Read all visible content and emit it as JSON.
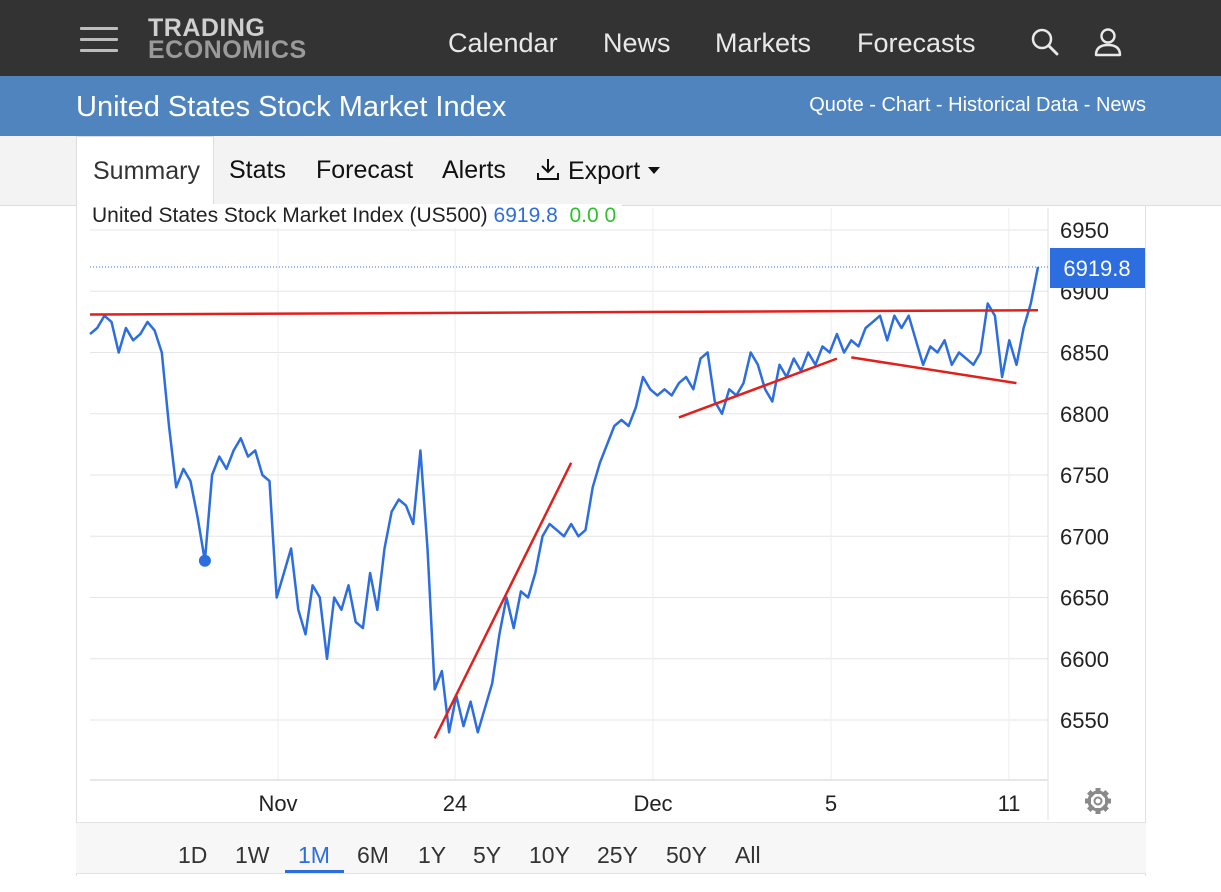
{
  "header": {
    "logo_line1": "TRADING",
    "logo_line2": "ECONOMICS",
    "nav": [
      "Calendar",
      "News",
      "Markets",
      "Forecasts"
    ],
    "icons": [
      "menu-icon",
      "search-icon",
      "user-icon"
    ]
  },
  "title_bar": {
    "title": "United States Stock Market Index",
    "links": [
      "Quote",
      "Chart",
      "Historical Data",
      "News"
    ],
    "separator": " - "
  },
  "tabs": {
    "items": [
      "Summary",
      "Stats",
      "Forecast",
      "Alerts",
      "Export"
    ],
    "active": "Summary",
    "export_icon": "download-icon"
  },
  "chart": {
    "series_label": "United States Stock Market Index (US500)",
    "last_value": "6919.8",
    "change": "0.0",
    "change_pct": "0",
    "price_badge": "6919.8",
    "settings_icon": "gear-icon",
    "colors": {
      "line": "#2c6de0",
      "trendline": "#e0201c",
      "badge": "#2c6de0",
      "change": "#2bc22b"
    }
  },
  "chart_data": {
    "type": "line",
    "title": "United States Stock Market Index (US500)",
    "xlabel": "",
    "ylabel": "",
    "ylim": [
      6505,
      6965
    ],
    "y_ticks": [
      6550,
      6600,
      6650,
      6700,
      6750,
      6800,
      6850,
      6900,
      6950
    ],
    "x_ticks": [
      "Nov",
      "24",
      "Dec",
      "5",
      "11"
    ],
    "grid": true,
    "series": [
      {
        "values": [
          6865,
          6870,
          6880,
          6875,
          6850,
          6870,
          6860,
          6865,
          6875,
          6868,
          6850,
          6790,
          6740,
          6755,
          6745,
          6715,
          6680,
          6750,
          6765,
          6755,
          6770,
          6780,
          6765,
          6770,
          6750,
          6745,
          6650,
          6670,
          6690,
          6640,
          6620,
          6660,
          6650,
          6600,
          6650,
          6640,
          6660,
          6630,
          6625,
          6670,
          6640,
          6690,
          6720,
          6730,
          6725,
          6710,
          6770,
          6690,
          6575,
          6590,
          6540,
          6570,
          6545,
          6565,
          6540,
          6560,
          6580,
          6620,
          6650,
          6625,
          6655,
          6650,
          6670,
          6700,
          6710,
          6705,
          6700,
          6710,
          6700,
          6705,
          6740,
          6760,
          6775,
          6790,
          6795,
          6790,
          6805,
          6830,
          6820,
          6815,
          6820,
          6815,
          6825,
          6830,
          6820,
          6845,
          6850,
          6810,
          6800,
          6820,
          6815,
          6825,
          6850,
          6840,
          6820,
          6810,
          6840,
          6830,
          6845,
          6835,
          6850,
          6840,
          6855,
          6850,
          6865,
          6850,
          6860,
          6855,
          6870,
          6875,
          6880,
          6860,
          6880,
          6870,
          6880,
          6860,
          6840,
          6855,
          6850,
          6860,
          6840,
          6850,
          6845,
          6840,
          6850,
          6890,
          6880,
          6830,
          6860,
          6840,
          6870,
          6890,
          6919.8
        ],
        "marker": {
          "index": 16,
          "value": 6680
        }
      }
    ],
    "annotations": [
      {
        "type": "trendline",
        "from": [
          0,
          6881
        ],
        "to": [
          132,
          6884.5
        ]
      },
      {
        "type": "trendline",
        "from": [
          48,
          6535
        ],
        "to": [
          67,
          6760
        ]
      },
      {
        "type": "trendline",
        "from": [
          82,
          6797
        ],
        "to": [
          104,
          6845
        ]
      },
      {
        "type": "trendline",
        "from": [
          106,
          6846
        ],
        "to": [
          129,
          6825
        ]
      }
    ]
  },
  "ranges": {
    "items": [
      "1D",
      "1W",
      "1M",
      "6M",
      "1Y",
      "5Y",
      "10Y",
      "25Y",
      "50Y",
      "All"
    ],
    "active": "1M"
  }
}
